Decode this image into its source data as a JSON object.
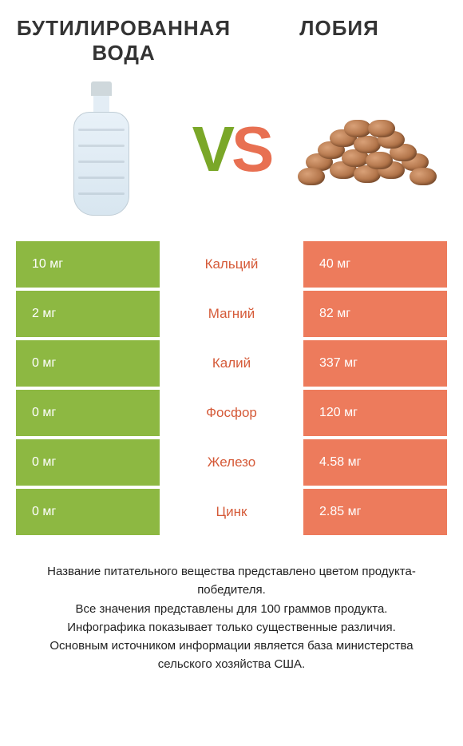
{
  "header": {
    "left_title": "Бутилированная вода",
    "right_title": "Лобия"
  },
  "vs": {
    "v": "V",
    "s": "S"
  },
  "colors": {
    "left_bg": "#8db842",
    "right_bg": "#ed7b5c",
    "mid_green": "#6f9a1f",
    "mid_orange": "#d55a38",
    "row_gap_color": "#ffffff"
  },
  "table": {
    "rows": [
      {
        "left": "10 мг",
        "mid": "Кальций",
        "right": "40 мг",
        "winner": "right"
      },
      {
        "left": "2 мг",
        "mid": "Магний",
        "right": "82 мг",
        "winner": "right"
      },
      {
        "left": "0 мг",
        "mid": "Калий",
        "right": "337 мг",
        "winner": "right"
      },
      {
        "left": "0 мг",
        "mid": "Фосфор",
        "right": "120 мг",
        "winner": "right"
      },
      {
        "left": "0 мг",
        "mid": "Железо",
        "right": "4.58 мг",
        "winner": "right"
      },
      {
        "left": "0 мг",
        "mid": "Цинк",
        "right": "2.85 мг",
        "winner": "right"
      }
    ]
  },
  "footer_lines": [
    "Название питательного вещества представлено цветом продукта-победителя.",
    "Все значения представлены для 100 граммов продукта.",
    "Инфографика показывает только существенные различия.",
    "Основным источником информации является база министерства сельского хозяйства США."
  ]
}
